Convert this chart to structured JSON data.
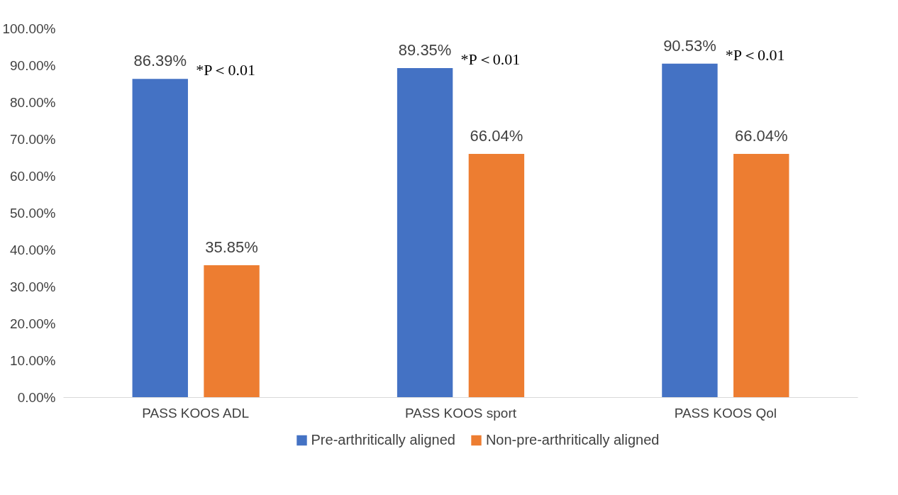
{
  "chart_data": {
    "type": "bar",
    "categories": [
      "PASS KOOS ADL",
      "PASS KOOS sport",
      "PASS KOOS Qol"
    ],
    "series": [
      {
        "name": "Pre-arthritically aligned",
        "color": "#4472c4",
        "values": [
          86.39,
          89.35,
          90.53
        ],
        "value_labels": [
          "86.39%",
          "89.35%",
          "90.53%"
        ]
      },
      {
        "name": "Non-pre-arthritically aligned",
        "color": "#ed7d31",
        "values": [
          35.85,
          66.04,
          66.04
        ],
        "value_labels": [
          "35.85%",
          "66.04%",
          "66.04%"
        ]
      }
    ],
    "ylim": [
      0,
      100
    ],
    "yticks": [
      {
        "value": 0,
        "label": "0.00%"
      },
      {
        "value": 10,
        "label": "10.00%"
      },
      {
        "value": 20,
        "label": "20.00%"
      },
      {
        "value": 30,
        "label": "30.00%"
      },
      {
        "value": 40,
        "label": "40.00%"
      },
      {
        "value": 50,
        "label": "50.00%"
      },
      {
        "value": 60,
        "label": "60.00%"
      },
      {
        "value": 70,
        "label": "70.00%"
      },
      {
        "value": 80,
        "label": "80.00%"
      },
      {
        "value": 90,
        "label": "90.00%"
      },
      {
        "value": 100,
        "label": "100.00%"
      }
    ],
    "annotations": [
      "*P＜0.01",
      "*P＜0.01",
      "*P＜0.01"
    ],
    "grid": false,
    "legend": "bottom"
  }
}
